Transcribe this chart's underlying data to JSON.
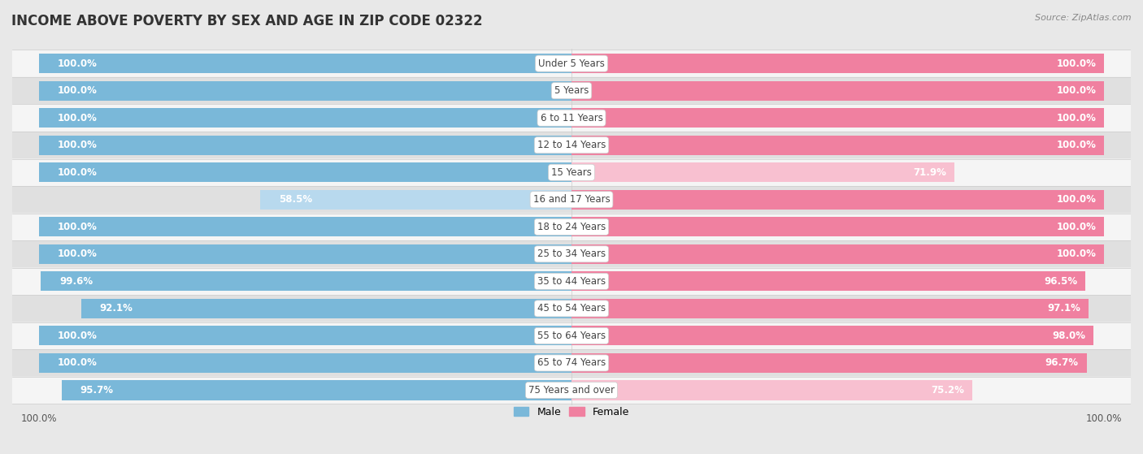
{
  "title": "INCOME ABOVE POVERTY BY SEX AND AGE IN ZIP CODE 02322",
  "source": "Source: ZipAtlas.com",
  "categories": [
    "Under 5 Years",
    "5 Years",
    "6 to 11 Years",
    "12 to 14 Years",
    "15 Years",
    "16 and 17 Years",
    "18 to 24 Years",
    "25 to 34 Years",
    "35 to 44 Years",
    "45 to 54 Years",
    "55 to 64 Years",
    "65 to 74 Years",
    "75 Years and over"
  ],
  "male": [
    100.0,
    100.0,
    100.0,
    100.0,
    100.0,
    58.5,
    100.0,
    100.0,
    99.6,
    92.1,
    100.0,
    100.0,
    95.7
  ],
  "female": [
    100.0,
    100.0,
    100.0,
    100.0,
    71.9,
    100.0,
    100.0,
    100.0,
    96.5,
    97.1,
    98.0,
    96.7,
    75.2
  ],
  "male_color": "#7ab8d9",
  "female_color": "#f080a0",
  "male_light_color": "#b8d9ee",
  "female_light_color": "#f8c0d0",
  "bg_color": "#e8e8e8",
  "row_color_even": "#f5f5f5",
  "row_color_odd": "#e0e0e0",
  "legend_male": "Male",
  "legend_female": "Female",
  "bar_height": 0.72,
  "title_fontsize": 12,
  "label_fontsize": 8.5,
  "category_fontsize": 8.5,
  "axis_label_fontsize": 8.5
}
